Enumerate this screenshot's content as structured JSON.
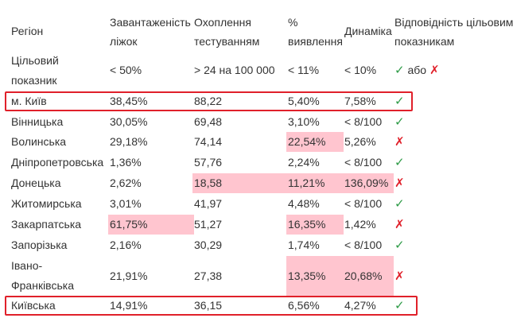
{
  "headers": {
    "region": "Регіон",
    "beds": "Завантаженість ліжок",
    "testing": "Охоплення тестуванням",
    "detection": "% виявлення",
    "dynamics": "Динаміка",
    "compliance": "Відповідність цільовим показникам"
  },
  "target": {
    "label": "Цільовий показник",
    "beds": "< 50%",
    "testing": "> 24 на 100 000",
    "detection": "< 11%",
    "dynamics": "< 10%",
    "check": "✓",
    "or": "або",
    "cross": "✗"
  },
  "rows": [
    {
      "region": "м. Київ",
      "beds": "38,45%",
      "testing": "88,22",
      "detection": "5,40%",
      "dynamics": "7,58%",
      "mark": "✓"
    },
    {
      "region": "Вінницька",
      "beds": "30,05%",
      "testing": "69,48",
      "detection": "3,10%",
      "dynamics": "< 8/100",
      "mark": "✓"
    },
    {
      "region": "Волинська",
      "beds": "29,18%",
      "testing": "74,14",
      "detection": "22,54%",
      "dynamics": "5,26%",
      "mark": "✗"
    },
    {
      "region": "Дніпропетровська",
      "beds": "1,36%",
      "testing": "57,76",
      "detection": "2,24%",
      "dynamics": "< 8/100",
      "mark": "✓"
    },
    {
      "region": "Донецька",
      "beds": "2,62%",
      "testing": "18,58",
      "detection": "11,21%",
      "dynamics": "136,09%",
      "mark": "✗"
    },
    {
      "region": "Житомирська",
      "beds": "3,01%",
      "testing": "41,97",
      "detection": "4,48%",
      "dynamics": "< 8/100",
      "mark": "✓"
    },
    {
      "region": "Закарпатська",
      "beds": "61,75%",
      "testing": "51,27",
      "detection": "16,35%",
      "dynamics": "1,42%",
      "mark": "✗"
    },
    {
      "region": "Запорізька",
      "beds": "2,16%",
      "testing": "30,29",
      "detection": "1,74%",
      "dynamics": "< 8/100",
      "mark": "✓"
    },
    {
      "region": "Івано-Франківська",
      "beds": "21,91%",
      "testing": "27,38",
      "detection": "13,35%",
      "dynamics": "20,68%",
      "mark": "✗"
    },
    {
      "region": "Київська",
      "beds": "14,91%",
      "testing": "36,15",
      "detection": "6,56%",
      "dynamics": "4,27%",
      "mark": "✓"
    }
  ],
  "colors": {
    "highlight": "#ffc5cf",
    "ok": "#2e9b47",
    "bad": "#e0202a",
    "box": "#e0202a"
  }
}
